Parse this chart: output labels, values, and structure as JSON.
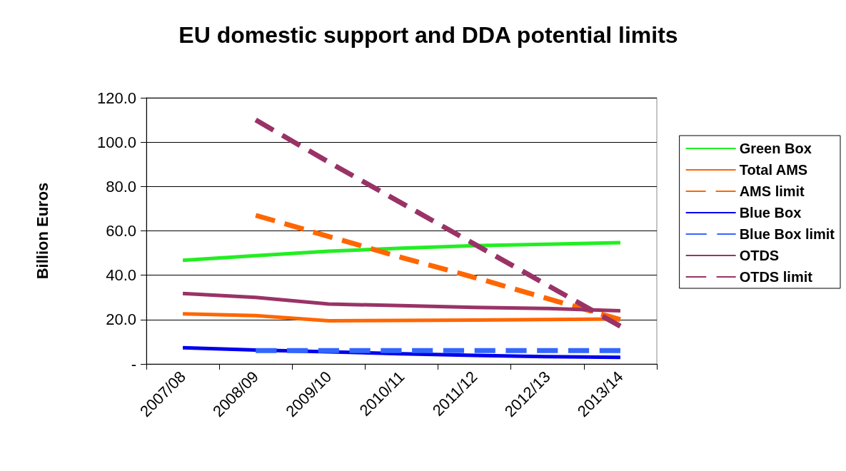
{
  "chart_data": {
    "type": "line",
    "title": "EU domestic support and DDA potential limits",
    "ylabel": "Billion Euros",
    "categories": [
      "2007/08",
      "2008/09",
      "2009/10",
      "2010/11",
      "2011/12",
      "2012/13",
      "2013/14"
    ],
    "series": [
      {
        "name": "Green Box",
        "color": "#22ee22",
        "line_style": "solid",
        "values": [
          46.7,
          48.8,
          50.8,
          52.2,
          53.3,
          54.0,
          54.7
        ]
      },
      {
        "name": "Total AMS",
        "color": "#ff6600",
        "line_style": "solid",
        "values": [
          22.6,
          21.8,
          19.5,
          19.6,
          19.8,
          20.0,
          20.3
        ]
      },
      {
        "name": "AMS limit",
        "color": "#ff6600",
        "line_style": "dashed",
        "values": [
          null,
          67.0,
          57.5,
          48.0,
          39.0,
          29.5,
          20.0
        ]
      },
      {
        "name": "Blue Box",
        "color": "#0000ee",
        "line_style": "solid",
        "values": [
          7.3,
          6.3,
          5.5,
          4.6,
          3.9,
          3.3,
          3.0
        ]
      },
      {
        "name": "Blue Box limit",
        "color": "#3366ff",
        "line_style": "dashed",
        "values": [
          null,
          6.0,
          6.0,
          6.0,
          6.0,
          6.0,
          6.0
        ]
      },
      {
        "name": "OTDS",
        "color": "#993366",
        "line_style": "solid",
        "values": [
          31.8,
          30.0,
          27.0,
          26.3,
          25.5,
          25.0,
          24.0
        ]
      },
      {
        "name": "OTDS limit",
        "color": "#993366",
        "line_style": "dashed",
        "values": [
          null,
          110.0,
          91.0,
          72.5,
          54.0,
          35.5,
          17.0
        ]
      }
    ],
    "ylim": [
      0,
      120
    ],
    "yticks": [
      {
        "value": 0,
        "label": "-"
      },
      {
        "value": 20,
        "label": "20.0"
      },
      {
        "value": 40,
        "label": "40.0"
      },
      {
        "value": 60,
        "label": "60.0"
      },
      {
        "value": 80,
        "label": "80.0"
      },
      {
        "value": 100,
        "label": "100.0"
      },
      {
        "value": 120,
        "label": "120.0"
      }
    ],
    "grid": "y",
    "legend": "right",
    "marker": "none"
  }
}
